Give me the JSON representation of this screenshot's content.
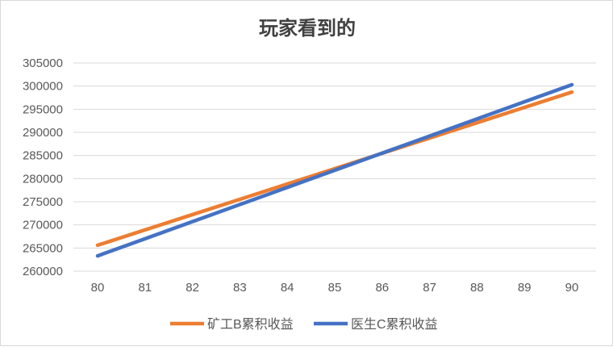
{
  "chart_data": {
    "type": "line",
    "title": "玩家看到的",
    "xlabel": "",
    "ylabel": "",
    "x": [
      80,
      81,
      82,
      83,
      84,
      85,
      86,
      87,
      88,
      89,
      90
    ],
    "ylim": [
      260000,
      305000
    ],
    "yticks": [
      260000,
      265000,
      270000,
      275000,
      280000,
      285000,
      290000,
      295000,
      300000,
      305000
    ],
    "grid": true,
    "legend_position": "bottom",
    "series": [
      {
        "name": "矿工B累积收益",
        "color": "#ED7D31",
        "values": [
          265600,
          268910,
          272220,
          275530,
          278840,
          282150,
          285460,
          288770,
          292080,
          295390,
          298700
        ]
      },
      {
        "name": "医生C累积收益",
        "color": "#4472C4",
        "values": [
          263300,
          267000,
          270700,
          274400,
          278100,
          281800,
          285500,
          289200,
          292900,
          296600,
          300300
        ]
      }
    ]
  }
}
